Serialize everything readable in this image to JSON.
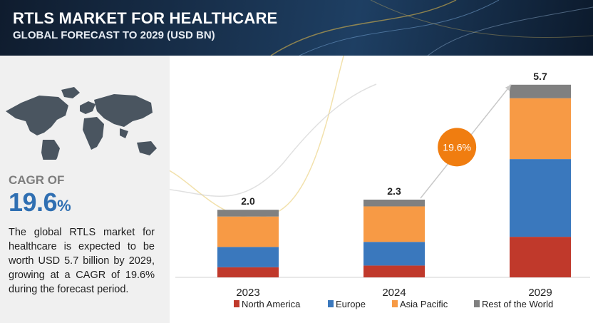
{
  "header": {
    "title": "RTLS MARKET FOR HEALTHCARE",
    "subtitle": "GLOBAL FORECAST TO 2029 (USD BN)"
  },
  "sidebar": {
    "cagr_label": "CAGR OF",
    "cagr_value": "19.6",
    "cagr_unit": "%",
    "description": "The global RTLS market for healthcare is expected to be worth USD 5.7 billion by 2029, growing at a CAGR of 19.6% during the forecast period."
  },
  "chart_data": {
    "type": "bar",
    "stacked": true,
    "categories": [
      "2023",
      "2024",
      "2029"
    ],
    "totals": [
      "2.0",
      "2.3",
      "5.7"
    ],
    "series": [
      {
        "name": "North America",
        "color": "#c0392b",
        "values": [
          0.3,
          0.35,
          1.2
        ]
      },
      {
        "name": "Europe",
        "color": "#3a78bd",
        "values": [
          0.6,
          0.7,
          2.3
        ]
      },
      {
        "name": "Asia Pacific",
        "color": "#f79a45",
        "values": [
          0.9,
          1.05,
          1.8
        ]
      },
      {
        "name": "Rest of the World",
        "color": "#808080",
        "values": [
          0.2,
          0.2,
          0.4
        ]
      }
    ],
    "annotation": "19.6%",
    "annotation_color": "#f07d10",
    "legend_position": "bottom",
    "grid": false
  }
}
